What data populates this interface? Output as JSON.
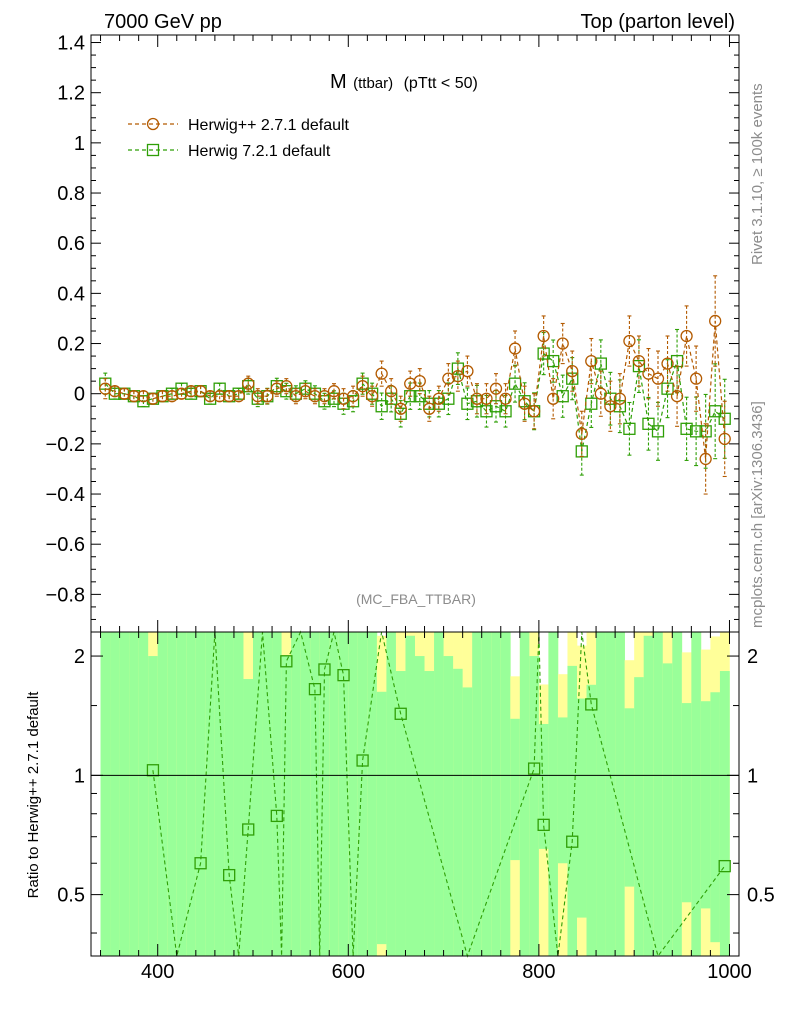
{
  "header": {
    "left": "7000 GeV pp",
    "right": "Top (parton level)"
  },
  "side_text": {
    "rivet": "Rivet 3.1.10, ≥ 100k events",
    "source": "mcplots.cern.ch [arXiv:1306.3436]"
  },
  "analysis_label": "(MC_FBA_TTBAR)",
  "colors": {
    "herwigpp": "#b35a00",
    "herwig7": "#2e9f06",
    "band_inner": "#99ff99",
    "band_outer": "#ffff99",
    "axis": "#000000",
    "label_grey": "#8c8c8c"
  },
  "chart_data": [
    {
      "type": "line",
      "title_main": "M",
      "title_sub": "(ttbar)",
      "title_cut": "(pTtt < 50)",
      "xlabel": "",
      "ylabel": "",
      "xlim": [
        330,
        1010
      ],
      "ylim": [
        -0.95,
        1.43
      ],
      "yticks": [
        -0.8,
        -0.6,
        -0.4,
        -0.2,
        0,
        0.2,
        0.4,
        0.6,
        0.8,
        1,
        1.2,
        1.4
      ],
      "ytick_labels": [
        "−0.8",
        "−0.6",
        "−0.4",
        "−0.2",
        "0",
        "0.2",
        "0.4",
        "0.6",
        "0.8",
        "1",
        "1.2",
        "1.4"
      ],
      "legend_position": "top-left",
      "series": [
        {
          "name": "Herwig++ 2.7.1 default",
          "marker": "circle",
          "x": [
            345,
            355,
            365,
            375,
            385,
            395,
            405,
            415,
            425,
            435,
            445,
            455,
            465,
            475,
            485,
            495,
            505,
            515,
            525,
            535,
            545,
            555,
            565,
            575,
            585,
            595,
            605,
            615,
            625,
            635,
            645,
            655,
            665,
            675,
            685,
            695,
            705,
            715,
            725,
            735,
            745,
            755,
            765,
            775,
            785,
            795,
            805,
            815,
            825,
            835,
            845,
            855,
            865,
            875,
            885,
            895,
            905,
            915,
            925,
            935,
            945,
            955,
            965,
            975,
            985,
            995
          ],
          "y": [
            0.02,
            0.01,
            0.0,
            -0.01,
            -0.01,
            -0.02,
            -0.01,
            -0.01,
            0.0,
            0.01,
            0.01,
            -0.01,
            -0.01,
            -0.01,
            -0.01,
            0.04,
            -0.01,
            -0.01,
            0.02,
            0.03,
            -0.01,
            0.01,
            -0.01,
            -0.01,
            0.01,
            -0.02,
            -0.01,
            0.03,
            -0.01,
            0.08,
            0.01,
            -0.06,
            0.04,
            0.05,
            -0.06,
            -0.02,
            0.06,
            0.07,
            0.09,
            -0.02,
            -0.02,
            0.02,
            -0.02,
            0.18,
            -0.04,
            -0.07,
            0.23,
            -0.02,
            0.2,
            0.09,
            -0.16,
            0.13,
            0.0,
            -0.05,
            -0.02,
            0.21,
            0.13,
            0.08,
            0.06,
            0.12,
            -0.01,
            0.23,
            0.06,
            -0.26,
            0.29,
            -0.18
          ],
          "yerr": [
            0.04,
            0.02,
            0.02,
            0.02,
            0.02,
            0.02,
            0.02,
            0.02,
            0.02,
            0.02,
            0.02,
            0.02,
            0.02,
            0.02,
            0.02,
            0.03,
            0.03,
            0.03,
            0.03,
            0.03,
            0.03,
            0.03,
            0.03,
            0.03,
            0.03,
            0.04,
            0.04,
            0.04,
            0.04,
            0.05,
            0.05,
            0.05,
            0.05,
            0.05,
            0.05,
            0.05,
            0.06,
            0.06,
            0.06,
            0.06,
            0.06,
            0.06,
            0.06,
            0.07,
            0.07,
            0.07,
            0.08,
            0.08,
            0.08,
            0.08,
            0.09,
            0.09,
            0.09,
            0.1,
            0.1,
            0.1,
            0.1,
            0.1,
            0.11,
            0.11,
            0.12,
            0.12,
            0.13,
            0.14,
            0.18,
            0.15
          ]
        },
        {
          "name": "Herwig 7.2.1 default",
          "marker": "square",
          "x": [
            345,
            355,
            365,
            375,
            385,
            395,
            405,
            415,
            425,
            435,
            445,
            455,
            465,
            475,
            485,
            495,
            505,
            515,
            525,
            535,
            545,
            555,
            565,
            575,
            585,
            595,
            605,
            615,
            625,
            635,
            645,
            655,
            665,
            675,
            685,
            695,
            705,
            715,
            725,
            735,
            745,
            755,
            765,
            775,
            785,
            795,
            805,
            815,
            825,
            835,
            845,
            855,
            865,
            875,
            885,
            895,
            905,
            915,
            925,
            935,
            945,
            955,
            965,
            975,
            985,
            995
          ],
          "y": [
            0.04,
            0.0,
            0.0,
            -0.01,
            -0.03,
            -0.02,
            -0.01,
            0.0,
            0.02,
            0.0,
            0.01,
            -0.02,
            0.02,
            -0.01,
            0.0,
            0.03,
            -0.02,
            -0.01,
            0.03,
            0.01,
            0.0,
            0.02,
            0.0,
            -0.03,
            -0.02,
            -0.04,
            -0.03,
            0.04,
            0.0,
            -0.05,
            -0.02,
            -0.08,
            -0.01,
            -0.01,
            -0.04,
            -0.04,
            -0.02,
            0.1,
            -0.04,
            -0.03,
            -0.07,
            -0.05,
            -0.07,
            0.04,
            -0.03,
            -0.07,
            0.16,
            0.13,
            -0.01,
            0.06,
            -0.23,
            -0.04,
            0.12,
            -0.02,
            -0.05,
            -0.14,
            0.11,
            -0.12,
            -0.15,
            0.02,
            0.13,
            -0.14,
            -0.15,
            -0.15,
            -0.07,
            -0.1
          ]
        }
      ]
    },
    {
      "type": "line",
      "ylabel": "Ratio to Herwig++ 2.7.1 default",
      "xlim": [
        330,
        1010
      ],
      "ylim": [
        0.35,
        2.3
      ],
      "xticks": [
        400,
        600,
        800,
        1000
      ],
      "xtick_labels": [
        "400",
        "600",
        "800",
        "1000"
      ],
      "yticks": [
        0.5,
        1,
        2
      ],
      "ytick_labels": [
        "0.5",
        "1",
        "2"
      ],
      "reference_line": 1,
      "series": [
        {
          "name": "Herwig 7.2.1 default",
          "marker": "square",
          "x": [
            395,
            445,
            475,
            495,
            525,
            535,
            565,
            575,
            595,
            615,
            655,
            795,
            805,
            835,
            855,
            995
          ],
          "y": [
            1.03,
            0.6,
            0.56,
            0.73,
            0.79,
            1.94,
            1.65,
            1.85,
            1.79,
            1.09,
            1.43,
            1.04,
            0.75,
            0.68,
            1.51,
            0.59
          ]
        }
      ]
    }
  ]
}
